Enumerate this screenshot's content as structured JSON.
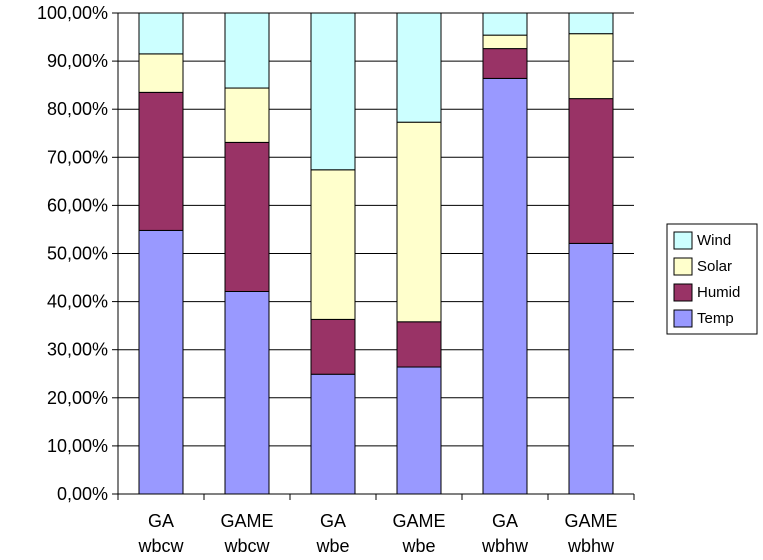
{
  "chart_data": {
    "type": "bar",
    "stacked": true,
    "percent": true,
    "title": "",
    "xlabel": "",
    "ylabel": "",
    "ylim": [
      0,
      100
    ],
    "grid": true,
    "legend_position": "right",
    "y_ticks": [
      "0,00%",
      "10,00%",
      "20,00%",
      "30,00%",
      "40,00%",
      "50,00%",
      "60,00%",
      "70,00%",
      "80,00%",
      "90,00%",
      "100,00%"
    ],
    "categories": [
      {
        "line1": "GA",
        "line2": "wbcw"
      },
      {
        "line1": "GAME",
        "line2": "wbcw"
      },
      {
        "line1": "GA",
        "line2": "wbe"
      },
      {
        "line1": "GAME",
        "line2": "wbe"
      },
      {
        "line1": "GA",
        "line2": "wbhw"
      },
      {
        "line1": "GAME",
        "line2": "wbhw"
      }
    ],
    "series": [
      {
        "name": "Temp",
        "color": "#9999ff",
        "values": [
          54.8,
          42.1,
          24.9,
          26.4,
          86.4,
          52.1
        ]
      },
      {
        "name": "Humid",
        "color": "#993366",
        "values": [
          28.7,
          31.0,
          11.4,
          9.4,
          6.2,
          30.1
        ]
      },
      {
        "name": "Solar",
        "color": "#ffffcc",
        "values": [
          8.0,
          11.3,
          31.1,
          41.5,
          2.8,
          13.5
        ]
      },
      {
        "name": "Wind",
        "color": "#ccffff",
        "values": [
          8.5,
          15.6,
          32.6,
          22.7,
          4.6,
          4.3
        ]
      }
    ],
    "legend_order": [
      "Wind",
      "Solar",
      "Humid",
      "Temp"
    ]
  }
}
